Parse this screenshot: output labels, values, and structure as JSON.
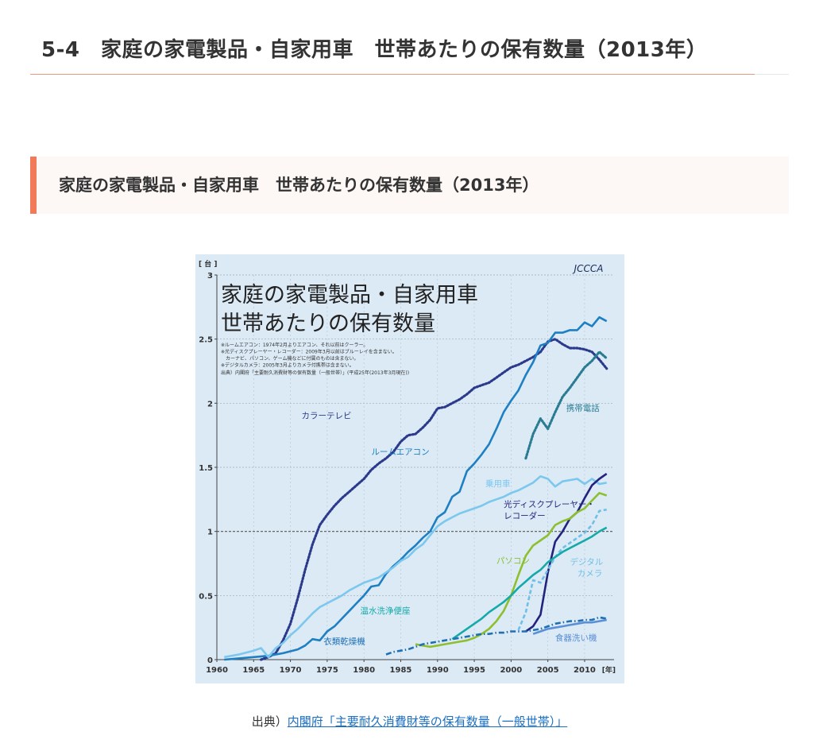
{
  "header": {
    "page_title": "5-4　家庭の家電製品・自家用車　世帯あたりの保有数量（2013年）",
    "section_title": "家庭の家電製品・自家用車　世帯あたりの保有数量（2013年）"
  },
  "figure": {
    "logo_text": "JCCCA",
    "notes": [
      "※ルームエアコン：1974年2月よりエアコン、それ以前はクーラー。",
      "※光ディスクプレーヤー・レコーダー：2009年3月以前はブルーレイを含まない。",
      "　カーナビ、パソコン、ゲーム機などに付属のものは含まない。",
      "※デジタルカメラ：2005年3月よりカメラ付携帯は含まない。"
    ],
    "source_note": "出典）内閣府「主要耐久消費財等の保有数量（一般世帯）」(平成25年(2013年3月現在))"
  },
  "footer": {
    "source_prefix": "出典）",
    "source_link": "内閣府「主要耐久消費財等の保有数量（一般世帯）」"
  },
  "chart_data": {
    "type": "line",
    "title": "家庭の家電製品・自家用車\n世帯あたりの保有数量",
    "xlabel": "年",
    "ylabel": "台",
    "xlim": [
      1960,
      2014
    ],
    "ylim": [
      0,
      3
    ],
    "xticks": [
      1960,
      1965,
      1970,
      1975,
      1980,
      1985,
      1990,
      1995,
      2000,
      2005,
      2010
    ],
    "yticks": [
      0,
      0.5,
      1,
      1.5,
      2,
      2.5,
      3
    ],
    "ytick_labels": [
      "0",
      "0.5",
      "1",
      "1.5",
      "2",
      "2.5",
      "3"
    ],
    "xtick_suffix": "[年]",
    "grid": true,
    "background": "#dbeaf5",
    "reference_line": 1,
    "series": [
      {
        "name": "カラーテレビ",
        "color": "#2c3a8c",
        "style": "dotted",
        "x": [
          1966,
          1967,
          1968,
          1969,
          1970,
          1971,
          1972,
          1973,
          1974,
          1975,
          1976,
          1977,
          1978,
          1979,
          1980,
          1981,
          1982,
          1983,
          1984,
          1985,
          1986,
          1987,
          1988,
          1989,
          1990,
          1991,
          1992,
          1993,
          1994,
          1995,
          1996,
          1997,
          1998,
          1999,
          2000,
          2001,
          2002,
          2003,
          2004,
          2005,
          2006,
          2007,
          2008,
          2009,
          2010,
          2011,
          2012,
          2013
        ],
        "y": [
          0.0,
          0.02,
          0.05,
          0.15,
          0.28,
          0.48,
          0.7,
          0.9,
          1.05,
          1.13,
          1.2,
          1.26,
          1.31,
          1.36,
          1.41,
          1.48,
          1.53,
          1.57,
          1.62,
          1.7,
          1.75,
          1.76,
          1.81,
          1.87,
          1.96,
          1.97,
          2.0,
          2.03,
          2.07,
          2.12,
          2.14,
          2.16,
          2.2,
          2.24,
          2.28,
          2.3,
          2.33,
          2.36,
          2.4,
          2.48,
          2.5,
          2.46,
          2.43,
          2.43,
          2.42,
          2.4,
          2.34,
          2.27
        ]
      },
      {
        "name": "ルームエアコン",
        "color": "#1e7fc2",
        "style": "solid",
        "x": [
          1961,
          1963,
          1965,
          1967,
          1969,
          1971,
          1972,
          1973,
          1974,
          1975,
          1976,
          1977,
          1978,
          1979,
          1980,
          1981,
          1982,
          1983,
          1984,
          1985,
          1986,
          1987,
          1988,
          1989,
          1990,
          1991,
          1992,
          1993,
          1994,
          1995,
          1996,
          1997,
          1998,
          1999,
          2000,
          2001,
          2002,
          2003,
          2004,
          2005,
          2006,
          2007,
          2008,
          2009,
          2010,
          2011,
          2012,
          2013
        ],
        "y": [
          0.0,
          0.01,
          0.02,
          0.03,
          0.05,
          0.08,
          0.11,
          0.16,
          0.15,
          0.22,
          0.26,
          0.32,
          0.38,
          0.44,
          0.5,
          0.57,
          0.58,
          0.67,
          0.73,
          0.78,
          0.84,
          0.89,
          0.95,
          1.0,
          1.11,
          1.15,
          1.27,
          1.31,
          1.47,
          1.53,
          1.6,
          1.68,
          1.8,
          1.93,
          2.02,
          2.1,
          2.22,
          2.32,
          2.45,
          2.47,
          2.55,
          2.55,
          2.57,
          2.57,
          2.63,
          2.6,
          2.67,
          2.64
        ]
      },
      {
        "name": "乗用車",
        "color": "#7cc7ee",
        "style": "solid",
        "x": [
          1961,
          1963,
          1965,
          1966,
          1967,
          1968,
          1969,
          1970,
          1971,
          1972,
          1973,
          1974,
          1975,
          1976,
          1977,
          1978,
          1979,
          1980,
          1981,
          1982,
          1983,
          1984,
          1985,
          1986,
          1987,
          1988,
          1989,
          1990,
          1991,
          1992,
          1993,
          1994,
          1995,
          1996,
          1997,
          1998,
          1999,
          2000,
          2001,
          2002,
          2003,
          2004,
          2005,
          2006,
          2007,
          2008,
          2009,
          2010,
          2011,
          2012,
          2013
        ],
        "y": [
          0.02,
          0.04,
          0.07,
          0.09,
          0.02,
          0.09,
          0.13,
          0.19,
          0.24,
          0.3,
          0.36,
          0.41,
          0.44,
          0.47,
          0.5,
          0.54,
          0.57,
          0.6,
          0.62,
          0.64,
          0.68,
          0.72,
          0.77,
          0.8,
          0.86,
          0.9,
          0.97,
          1.04,
          1.08,
          1.11,
          1.14,
          1.16,
          1.18,
          1.2,
          1.23,
          1.25,
          1.27,
          1.3,
          1.32,
          1.35,
          1.38,
          1.43,
          1.41,
          1.35,
          1.39,
          1.4,
          1.41,
          1.37,
          1.41,
          1.37,
          1.38
        ]
      },
      {
        "name": "携帯電話",
        "color": "#2a7c93",
        "style": "dotted",
        "x": [
          2002,
          2003,
          2004,
          2005,
          2006,
          2007,
          2008,
          2009,
          2010,
          2011,
          2012,
          2013
        ],
        "y": [
          1.57,
          1.76,
          1.88,
          1.8,
          1.93,
          2.05,
          2.12,
          2.2,
          2.28,
          2.33,
          2.4,
          2.35
        ]
      },
      {
        "name": "光ディスクプレーヤー・レコーダー",
        "color": "#23237e",
        "style": "solid",
        "x": [
          2002,
          2003,
          2004,
          2005,
          2006,
          2007,
          2008,
          2009,
          2010,
          2011,
          2012,
          2013
        ],
        "y": [
          0.22,
          0.26,
          0.35,
          0.68,
          0.92,
          1.0,
          1.1,
          1.15,
          1.26,
          1.36,
          1.41,
          1.45
        ]
      },
      {
        "name": "パソコン",
        "color": "#8dbf2e",
        "style": "solid",
        "x": [
          1987,
          1988,
          1989,
          1990,
          1991,
          1992,
          1993,
          1994,
          1995,
          1996,
          1997,
          1998,
          1999,
          2000,
          2001,
          2002,
          2003,
          2004,
          2005,
          2006,
          2007,
          2008,
          2009,
          2010,
          2011,
          2012,
          2013
        ],
        "y": [
          0.12,
          0.11,
          0.1,
          0.11,
          0.12,
          0.13,
          0.14,
          0.15,
          0.17,
          0.2,
          0.24,
          0.3,
          0.38,
          0.5,
          0.66,
          0.81,
          0.89,
          0.93,
          0.97,
          1.05,
          1.08,
          1.1,
          1.15,
          1.18,
          1.24,
          1.3,
          1.28
        ]
      },
      {
        "name": "デジタルカメラ",
        "color": "#6fbfe8",
        "style": "dashed",
        "x": [
          2001,
          2002,
          2003,
          2004,
          2005,
          2006,
          2007,
          2008,
          2009,
          2010,
          2011,
          2012,
          2013
        ],
        "y": [
          0.23,
          0.37,
          0.62,
          0.6,
          0.7,
          0.8,
          0.87,
          0.91,
          0.95,
          0.99,
          1.05,
          1.16,
          1.17
        ]
      },
      {
        "name": "温水洗浄便座",
        "color": "#15aaa9",
        "style": "solid",
        "x": [
          1992,
          1993,
          1994,
          1995,
          1996,
          1997,
          1998,
          1999,
          2000,
          2001,
          2002,
          2003,
          2004,
          2005,
          2006,
          2007,
          2008,
          2009,
          2010,
          2011,
          2012,
          2013
        ],
        "y": [
          0.16,
          0.2,
          0.24,
          0.28,
          0.32,
          0.37,
          0.41,
          0.45,
          0.5,
          0.56,
          0.61,
          0.66,
          0.7,
          0.76,
          0.8,
          0.84,
          0.87,
          0.9,
          0.93,
          0.96,
          1.0,
          1.03
        ]
      },
      {
        "name": "衣類乾燥機",
        "color": "#1f6fb3",
        "style": "dashdot",
        "x": [
          1983,
          1984,
          1985,
          1986,
          1987,
          1988,
          1989,
          1990,
          1991,
          1992,
          1993,
          1994,
          1995,
          1996,
          1997,
          1998,
          1999,
          2000,
          2001,
          2002,
          2003,
          2004,
          2005,
          2006,
          2007,
          2008,
          2009,
          2010,
          2011,
          2012,
          2013
        ],
        "y": [
          0.04,
          0.06,
          0.07,
          0.08,
          0.1,
          0.12,
          0.13,
          0.14,
          0.15,
          0.16,
          0.17,
          0.18,
          0.19,
          0.2,
          0.2,
          0.21,
          0.21,
          0.22,
          0.22,
          0.22,
          0.23,
          0.24,
          0.26,
          0.28,
          0.29,
          0.3,
          0.3,
          0.31,
          0.31,
          0.33,
          0.32
        ]
      },
      {
        "name": "食器洗い機",
        "color": "#5b8fd6",
        "style": "solid",
        "x": [
          2003,
          2004,
          2005,
          2006,
          2007,
          2008,
          2009,
          2010,
          2011,
          2012,
          2013
        ],
        "y": [
          0.2,
          0.22,
          0.24,
          0.25,
          0.26,
          0.27,
          0.28,
          0.29,
          0.29,
          0.3,
          0.31
        ]
      }
    ],
    "annotations": [
      {
        "text": "カラーテレビ",
        "x": 1971.5,
        "y": 1.88,
        "color": "#2c3a8c"
      },
      {
        "text": "ルームエアコン",
        "x": 1981,
        "y": 1.6,
        "color": "#1e7fc2"
      },
      {
        "text": "乗用車",
        "x": 1996.5,
        "y": 1.35,
        "color": "#7cc7ee"
      },
      {
        "text": "携帯電話",
        "x": 2007.5,
        "y": 1.94,
        "color": "#2a7c93"
      },
      {
        "text": "光ディスクプレーヤー・",
        "x": 1999,
        "y": 1.19,
        "color": "#23237e"
      },
      {
        "text": "レコーダー",
        "x": 1999,
        "y": 1.1,
        "color": "#23237e"
      },
      {
        "text": "パソコン",
        "x": 1998,
        "y": 0.75,
        "color": "#8dbf2e"
      },
      {
        "text": "デジタル",
        "x": 2008,
        "y": 0.74,
        "color": "#6fbfe8"
      },
      {
        "text": "カメラ",
        "x": 2009,
        "y": 0.65,
        "color": "#6fbfe8"
      },
      {
        "text": "温水洗浄便座",
        "x": 1979.5,
        "y": 0.36,
        "color": "#15aaa9"
      },
      {
        "text": "衣類乾燥機",
        "x": 1974.5,
        "y": 0.12,
        "color": "#1f6fb3"
      },
      {
        "text": "食器洗い機",
        "x": 2006,
        "y": 0.15,
        "color": "#5b8fd6"
      }
    ]
  }
}
